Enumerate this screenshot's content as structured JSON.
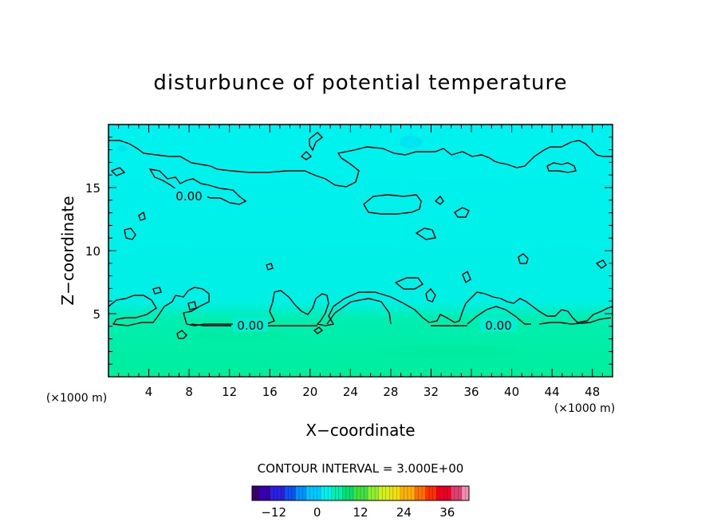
{
  "chart_data": {
    "type": "heatmap",
    "title": "disturbunce of potential temperature",
    "xlabel": "X−coordinate",
    "ylabel": "Z−coordinate",
    "x_unit": "(×1000 m)",
    "y_unit": "(×1000 m)",
    "x_range": [
      0,
      50
    ],
    "y_range": [
      0,
      20
    ],
    "x_ticks": [
      "4",
      "8",
      "12",
      "16",
      "20",
      "24",
      "28",
      "32",
      "36",
      "40",
      "44",
      "48"
    ],
    "y_ticks": [
      "5",
      "10",
      "15"
    ],
    "contour_labels": [
      "0.00",
      "0.00",
      "0.00"
    ],
    "contour_interval_text": "CONTOUR INTERVAL = 3.000E+00",
    "colorbar": {
      "range": [
        -18,
        42
      ],
      "tick_labels": [
        "−12",
        "0",
        "12",
        "24",
        "36"
      ],
      "colors": [
        "#3a0070",
        "#3800b0",
        "#2a20e0",
        "#1050f0",
        "#0090ff",
        "#00c8ff",
        "#00f0f0",
        "#00f0b0",
        "#00e070",
        "#40e040",
        "#90ee30",
        "#d0f020",
        "#f0e010",
        "#ffb000",
        "#ff7000",
        "#ff3000",
        "#f00020",
        "#e04070",
        "#f090b0"
      ]
    },
    "field_colors": {
      "upper": "#00f0ee",
      "lower": "#00ee9c"
    }
  }
}
